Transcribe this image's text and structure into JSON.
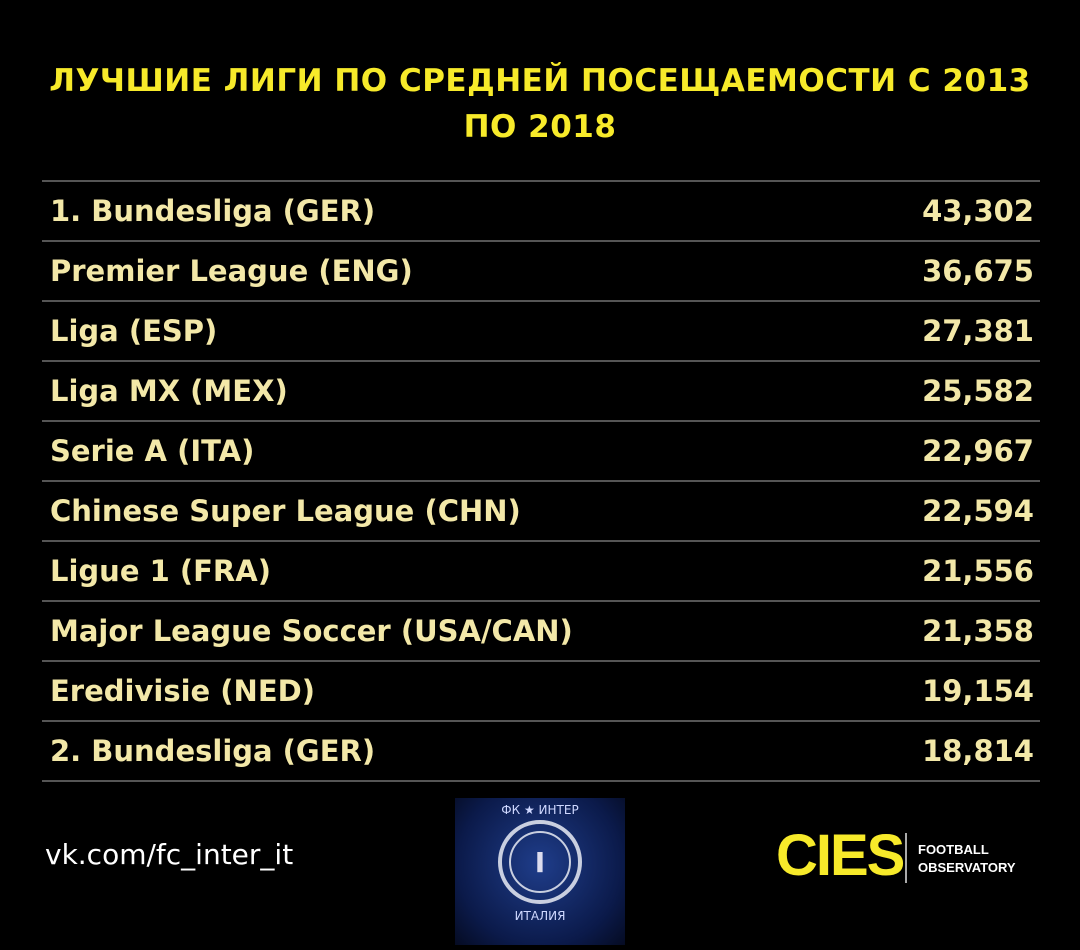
{
  "header": {
    "title": "ЛУЧШИЕ ЛИГИ ПО СРЕДНЕЙ ПОСЕЩАЕМОСТИ С 2013 ПО 2018"
  },
  "table": {
    "rows": [
      [
        "1. Bundesliga (GER)",
        "43,302"
      ],
      [
        "Premier League (ENG)",
        "36,675"
      ],
      [
        "Liga (ESP)",
        "27,381"
      ],
      [
        "Liga MX (MEX)",
        "25,582"
      ],
      [
        "Serie A (ITA)",
        "22,967"
      ],
      [
        "Chinese Super League (CHN)",
        "22,594"
      ],
      [
        "Ligue 1 (FRA)",
        "21,556"
      ],
      [
        "Major League Soccer (USA/CAN)",
        "21,358"
      ],
      [
        "Eredivisie (NED)",
        "19,154"
      ],
      [
        "2. Bundesliga (GER)",
        "18,814"
      ]
    ]
  },
  "footer": {
    "link": "vk.com/fc_inter_it",
    "inter_top": "ФК ★ ИНТЕР",
    "inter_bottom": "ИТАЛИЯ",
    "cies": "CIES",
    "cies_line1": "FOOTBALL",
    "cies_line2": "OBSERVATORY"
  }
}
